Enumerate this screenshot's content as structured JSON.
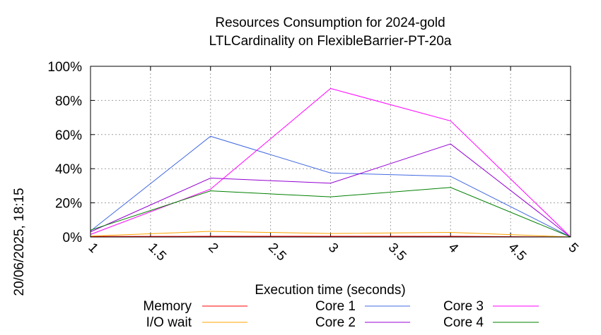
{
  "timestamp": "20/06/2025, 18:15",
  "chart_data": {
    "type": "line",
    "title": "Resources Consumption for 2024-gold",
    "subtitle": "LTLCardinality on FlexibleBarrier-PT-20a",
    "xlabel": "Execution time (seconds)",
    "ylabel": "",
    "x": [
      1,
      2,
      3,
      4,
      5
    ],
    "xlim": [
      1,
      5
    ],
    "ylim": [
      0,
      100
    ],
    "x_ticks": [
      "1",
      "1.5",
      "2",
      "2.5",
      "3",
      "3.5",
      "4",
      "4.5",
      "5"
    ],
    "y_ticks": [
      "0%",
      "20%",
      "40%",
      "60%",
      "80%",
      "100%"
    ],
    "grid": true,
    "legend_position": "bottom",
    "series": [
      {
        "name": "Memory",
        "color": "#ff0000",
        "values": [
          0.3,
          0.4,
          0.4,
          0.4,
          0
        ]
      },
      {
        "name": "I/O wait",
        "color": "#ffa500",
        "values": [
          0.5,
          3.3,
          2.0,
          2.7,
          0
        ]
      },
      {
        "name": "Core 1",
        "color": "#4169e1",
        "values": [
          3.5,
          59,
          37.5,
          35.5,
          0
        ]
      },
      {
        "name": "Core 2",
        "color": "#9400d3",
        "values": [
          3.0,
          34.5,
          31.5,
          54.5,
          0
        ]
      },
      {
        "name": "Core 3",
        "color": "#ff00ff",
        "values": [
          1.5,
          28,
          87,
          68,
          0
        ]
      },
      {
        "name": "Core 4",
        "color": "#008000",
        "values": [
          4.0,
          27,
          23.5,
          29,
          0
        ]
      }
    ]
  }
}
